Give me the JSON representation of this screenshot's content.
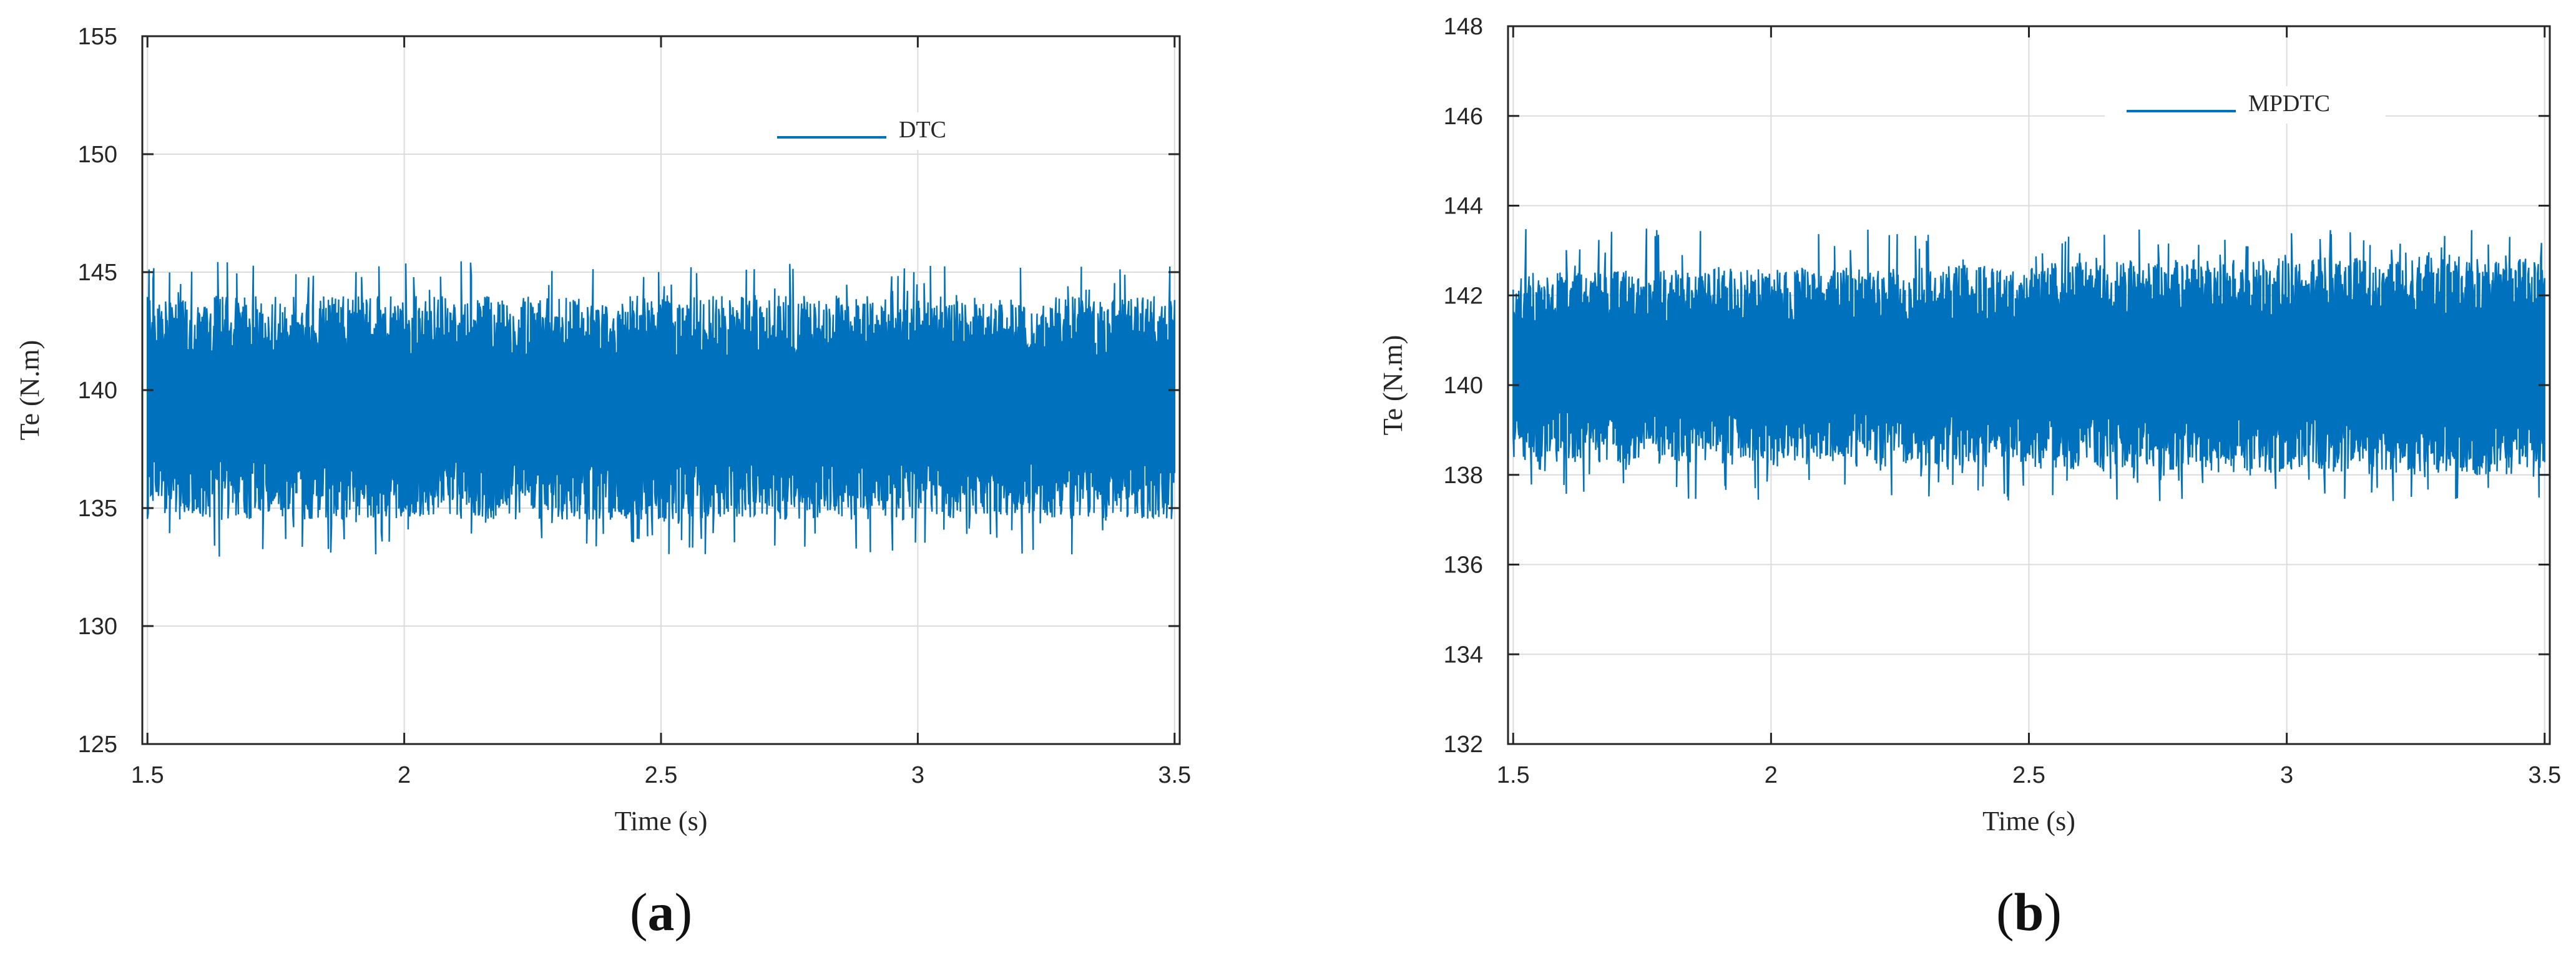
{
  "figure": {
    "panels": [
      {
        "panel_label_open": "(",
        "panel_label_letter": "a",
        "panel_label_close": ")"
      },
      {
        "panel_label_open": "(",
        "panel_label_letter": "b",
        "panel_label_close": ")"
      }
    ]
  },
  "chart_data": [
    {
      "type": "line",
      "xlabel": "Time (s)",
      "ylabel": "Te (N.m)",
      "xlim": [
        1.49,
        3.51
      ],
      "ylim": [
        125,
        155
      ],
      "xticks": [
        1.5,
        2,
        2.5,
        3,
        3.5
      ],
      "xtick_labels": [
        "1.5",
        "2",
        "2.5",
        "3",
        "3.5"
      ],
      "yticks": [
        125,
        130,
        135,
        140,
        145,
        150,
        155
      ],
      "ytick_labels": [
        "125",
        "130",
        "135",
        "140",
        "145",
        "150",
        "155"
      ],
      "grid": true,
      "legend_position": "top-center",
      "series": [
        {
          "name": "DTC",
          "color": "#0072BD",
          "x_range": [
            1.5,
            3.5
          ],
          "signal_description": "high-frequency ripple band",
          "typical_band": [
            134.5,
            144.0
          ],
          "peak_max": 145.5,
          "peak_min": 132.9,
          "mean": 139.2
        }
      ]
    },
    {
      "type": "line",
      "xlabel": "Time (s)",
      "ylabel": "Te (N.m)",
      "xlim": [
        1.49,
        3.51
      ],
      "ylim": [
        132,
        148
      ],
      "xticks": [
        1.5,
        2,
        2.5,
        3,
        3.5
      ],
      "xtick_labels": [
        "1.5",
        "2",
        "2.5",
        "3",
        "3.5"
      ],
      "yticks": [
        132,
        134,
        136,
        138,
        140,
        142,
        144,
        146,
        148
      ],
      "ytick_labels": [
        "132",
        "134",
        "136",
        "138",
        "140",
        "142",
        "144",
        "146",
        "148"
      ],
      "grid": true,
      "legend_position": "top-center",
      "series": [
        {
          "name": "MPDTC",
          "color": "#0072BD",
          "x_range": [
            1.5,
            3.5
          ],
          "signal_description": "high-frequency ripple band",
          "typical_band": [
            138.3,
            142.5
          ],
          "peak_max": 143.5,
          "peak_min": 137.4,
          "mean": 140.4
        }
      ]
    }
  ]
}
